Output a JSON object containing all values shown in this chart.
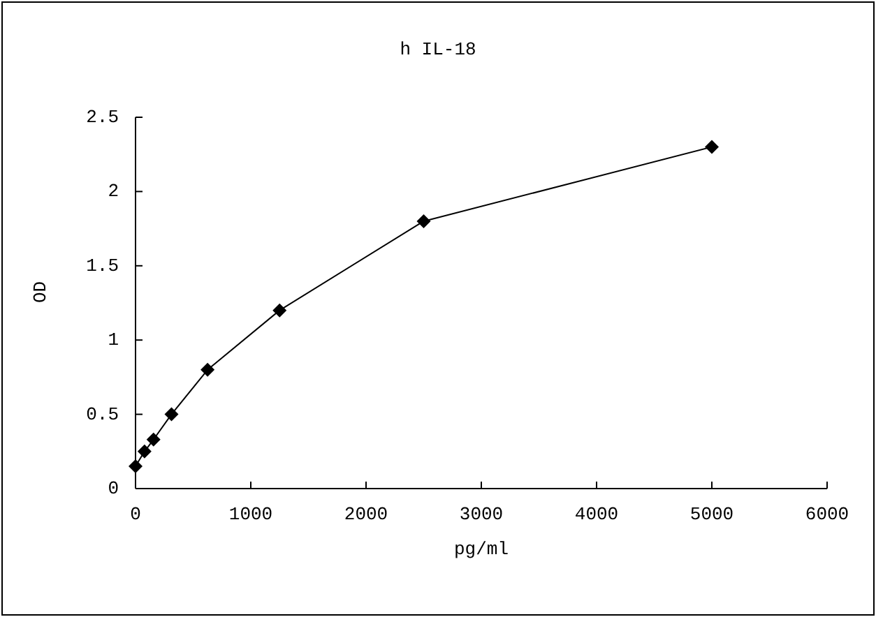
{
  "chart_data": {
    "type": "line",
    "title": "h IL-18",
    "xlabel": "pg/ml",
    "ylabel": "OD",
    "x": [
      0,
      78,
      156,
      312,
      625,
      1250,
      2500,
      5000
    ],
    "series": [
      {
        "color": "#000000",
        "values": [
          0.15,
          0.25,
          0.33,
          0.5,
          0.8,
          1.2,
          1.8,
          2.3
        ]
      }
    ],
    "xlim": [
      0,
      6000
    ],
    "xticks": [
      0,
      1000,
      2000,
      3000,
      4000,
      5000,
      6000
    ],
    "ylim": [
      0,
      2.5
    ],
    "yticks": [
      0,
      0.5,
      1,
      1.5,
      2,
      2.5
    ],
    "marker": "diamond",
    "line_style": "solid"
  }
}
